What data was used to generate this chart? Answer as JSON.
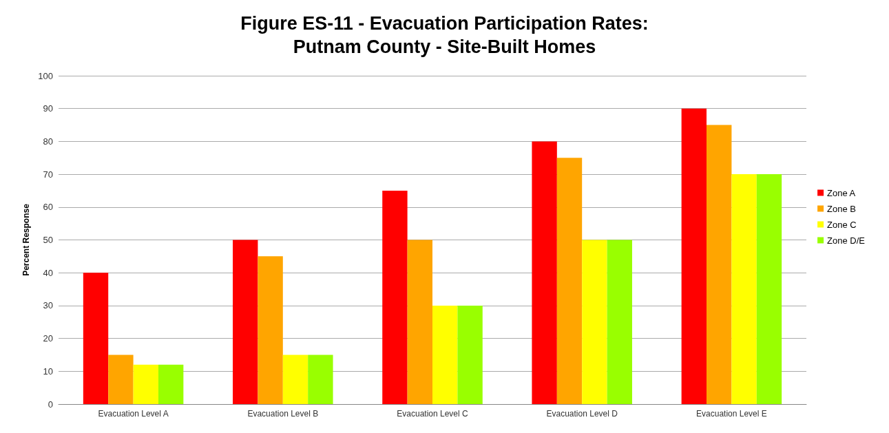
{
  "chart_data": {
    "type": "bar",
    "title": "Figure ES-11 - Evacuation Participation Rates:\nPutnam County - Site-Built Homes",
    "ylabel": "Percent Response",
    "categories": [
      "Evacuation Level A",
      "Evacuation Level B",
      "Evacuation Level C",
      "Evacuation Level D",
      "Evacuation Level E"
    ],
    "series": [
      {
        "name": "Zone A",
        "color": "#ff0000",
        "values": [
          40,
          50,
          65,
          80,
          90
        ]
      },
      {
        "name": "Zone B",
        "color": "#ffa500",
        "values": [
          15,
          45,
          50,
          75,
          85
        ]
      },
      {
        "name": "Zone C",
        "color": "#ffff00",
        "values": [
          12,
          15,
          30,
          50,
          70
        ]
      },
      {
        "name": "Zone D/E",
        "color": "#99ff00",
        "values": [
          12,
          15,
          30,
          50,
          70
        ]
      }
    ],
    "ylim": [
      0,
      100
    ],
    "yticks": [
      0,
      10,
      20,
      30,
      40,
      50,
      60,
      70,
      80,
      90,
      100
    ],
    "grid": "y",
    "legend": "right"
  }
}
